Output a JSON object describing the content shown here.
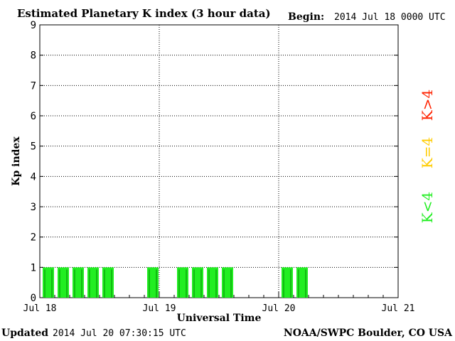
{
  "header": {
    "title": "Estimated Planetary K index (3 hour data)",
    "begin_label": "Begin:",
    "begin_value": "2014 Jul 18 0000 UTC"
  },
  "footer": {
    "updated_label": "Updated",
    "updated_value": "2014 Jul 20 07:30:15 UTC",
    "source": "NOAA/SWPC Boulder, CO USA"
  },
  "legend": {
    "high": {
      "label": "K>4",
      "color": "#ff2200"
    },
    "mid": {
      "label": "K=4",
      "color": "#ffcc00"
    },
    "low": {
      "label": "K<4",
      "color": "#22ee22"
    }
  },
  "chart_data": {
    "type": "bar",
    "title": "Estimated Planetary K index (3 hour data)",
    "xlabel": "Universal Time",
    "ylabel": "Kp index",
    "ylim": [
      0,
      9
    ],
    "yticks": [
      "0",
      "1",
      "2",
      "3",
      "4",
      "5",
      "6",
      "7",
      "8",
      "9"
    ],
    "xlim": [
      "2014 Jul 18 00:00",
      "2014 Jul 21 00:00"
    ],
    "xticks": [
      "Jul 18",
      "Jul 19",
      "Jul 20",
      "Jul 21"
    ],
    "grid": true,
    "bar_color": "#22ee22",
    "bins": [
      {
        "time": "Jul 18 00:00",
        "value": 1
      },
      {
        "time": "Jul 18 03:00",
        "value": 1
      },
      {
        "time": "Jul 18 06:00",
        "value": 1
      },
      {
        "time": "Jul 18 09:00",
        "value": 1
      },
      {
        "time": "Jul 18 12:00",
        "value": 1
      },
      {
        "time": "Jul 18 15:00",
        "value": 0
      },
      {
        "time": "Jul 18 18:00",
        "value": 0
      },
      {
        "time": "Jul 18 21:00",
        "value": 1
      },
      {
        "time": "Jul 19 00:00",
        "value": 0
      },
      {
        "time": "Jul 19 03:00",
        "value": 1
      },
      {
        "time": "Jul 19 06:00",
        "value": 1
      },
      {
        "time": "Jul 19 09:00",
        "value": 1
      },
      {
        "time": "Jul 19 12:00",
        "value": 1
      },
      {
        "time": "Jul 19 15:00",
        "value": 0
      },
      {
        "time": "Jul 19 18:00",
        "value": 0
      },
      {
        "time": "Jul 19 21:00",
        "value": 0
      },
      {
        "time": "Jul 20 00:00",
        "value": 1
      },
      {
        "time": "Jul 20 03:00",
        "value": 1
      }
    ]
  }
}
